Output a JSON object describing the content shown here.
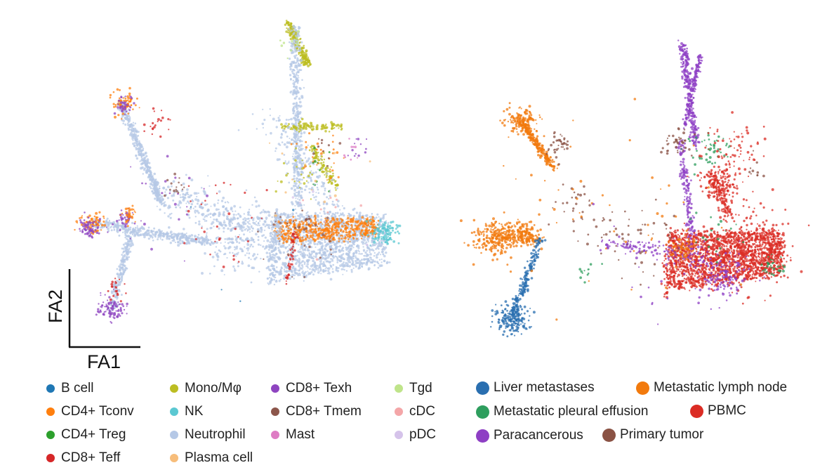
{
  "chart_data": [
    {
      "type": "scatter",
      "subtype": "force-atlas embedding",
      "title": "",
      "xlabel": "FA1",
      "ylabel": "FA2",
      "legend_title": "",
      "legend_placement": "bottom",
      "series": [
        {
          "name": "B cell",
          "color": "#1f77b4"
        },
        {
          "name": "CD4+ Tconv",
          "color": "#ff7f0e"
        },
        {
          "name": "CD4+ Treg",
          "color": "#2ca02c"
        },
        {
          "name": "CD8+ Teff",
          "color": "#d62728"
        },
        {
          "name": "Mono/Mφ",
          "color": "#bcbd22"
        },
        {
          "name": "NK",
          "color": "#5bc8d2"
        },
        {
          "name": "Neutrophil",
          "color": "#b5c8e6"
        },
        {
          "name": "Plasma cell",
          "color": "#f7bd7a"
        },
        {
          "name": "CD8+ Texh",
          "color": "#8e44c0"
        },
        {
          "name": "CD8+ Tmem",
          "color": "#8c564b"
        },
        {
          "name": "Mast",
          "color": "#de7cc4"
        },
        {
          "name": "Tgd",
          "color": "#bfe48a"
        },
        {
          "name": "cDC",
          "color": "#f4a6a8"
        },
        {
          "name": "pDC",
          "color": "#d5c3ea"
        }
      ]
    },
    {
      "type": "scatter",
      "subtype": "force-atlas embedding",
      "title": "",
      "xlabel": "",
      "ylabel": "",
      "legend_title": "",
      "legend_placement": "bottom",
      "series": [
        {
          "name": "Liver metastases",
          "color": "#2a6fb0"
        },
        {
          "name": "Metastatic lymph node",
          "color": "#f27a0d"
        },
        {
          "name": "Metastatic pleural effusion",
          "color": "#2e9e5e"
        },
        {
          "name": "PBMC",
          "color": "#db2c24"
        },
        {
          "name": "Paracancerous",
          "color": "#8e3fc4"
        },
        {
          "name": "Primary tumor",
          "color": "#8a5244"
        }
      ]
    }
  ]
}
